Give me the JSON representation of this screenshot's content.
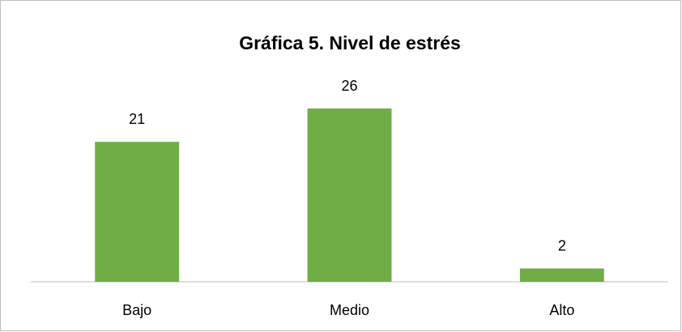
{
  "chart_data": {
    "type": "bar",
    "title": "Gráfica 5. Nivel de estrés",
    "categories": [
      "Bajo",
      "Medio",
      "Alto"
    ],
    "values": [
      21,
      26,
      2
    ],
    "color": "#70ad47"
  }
}
